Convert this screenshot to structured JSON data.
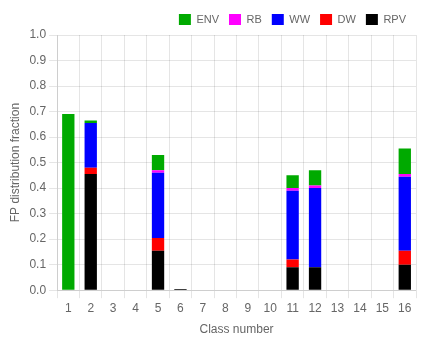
{
  "chart_data": {
    "type": "bar",
    "stacked": true,
    "categories": [
      "1",
      "2",
      "3",
      "4",
      "5",
      "6",
      "7",
      "8",
      "9",
      "10",
      "11",
      "12",
      "13",
      "14",
      "15",
      "16"
    ],
    "series": [
      {
        "name": "RPV",
        "color": "#000000",
        "values": [
          0.0,
          0.455,
          0.0,
          0.0,
          0.155,
          0.005,
          0.0,
          0.0,
          0.0,
          0.0,
          0.09,
          0.09,
          0.0,
          0.0,
          0.0,
          0.1
        ]
      },
      {
        "name": "DW",
        "color": "#ff0000",
        "values": [
          0.0,
          0.025,
          0.0,
          0.0,
          0.05,
          0.0,
          0.0,
          0.0,
          0.0,
          0.0,
          0.03,
          0.0,
          0.0,
          0.0,
          0.0,
          0.055
        ]
      },
      {
        "name": "WW",
        "color": "#0000ff",
        "values": [
          0.0,
          0.175,
          0.0,
          0.0,
          0.255,
          0.0,
          0.0,
          0.0,
          0.0,
          0.0,
          0.27,
          0.31,
          0.0,
          0.0,
          0.0,
          0.29
        ]
      },
      {
        "name": "RB",
        "color": "#ff00ff",
        "values": [
          0.0,
          0.0,
          0.0,
          0.0,
          0.01,
          0.0,
          0.0,
          0.0,
          0.0,
          0.0,
          0.01,
          0.01,
          0.0,
          0.0,
          0.0,
          0.01
        ]
      },
      {
        "name": "ENV",
        "color": "#00aa00",
        "values": [
          0.69,
          0.01,
          0.0,
          0.0,
          0.06,
          0.0,
          0.0,
          0.0,
          0.0,
          0.0,
          0.05,
          0.06,
          0.0,
          0.0,
          0.002,
          0.1
        ]
      }
    ],
    "xlabel": "Class number",
    "ylabel": "FP distribution fraction",
    "ylim": [
      0.0,
      1.0
    ],
    "yticks": [
      {
        "value": 0,
        "label": "0.0"
      },
      0.1,
      0.2,
      0.3,
      0.4,
      0.5,
      0.6,
      0.7,
      0.8,
      0.9,
      {
        "value": 1,
        "label": "1.0"
      }
    ],
    "grid": true,
    "legend": "upper right"
  }
}
